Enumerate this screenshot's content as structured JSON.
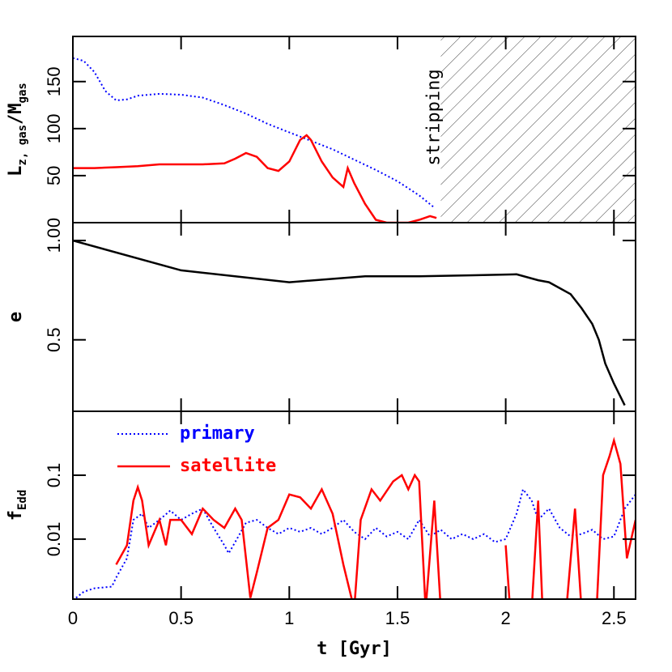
{
  "chart_data": [
    {
      "type": "line",
      "ylabel": [
        "L",
        "z, gas",
        "/M",
        "gas"
      ],
      "xlim": [
        0,
        2.6
      ],
      "ylim": [
        0,
        198
      ],
      "yticks": [
        0,
        50,
        100,
        150
      ],
      "annotation": "stripping",
      "hatch_xlim": [
        1.7,
        2.6
      ],
      "series": [
        {
          "name": "primary",
          "color": "#0000ff",
          "dash": "dotted",
          "x": [
            0,
            0.05,
            0.1,
            0.15,
            0.2,
            0.25,
            0.3,
            0.4,
            0.5,
            0.6,
            0.7,
            0.8,
            0.9,
            1.0,
            1.1,
            1.2,
            1.3,
            1.4,
            1.5,
            1.6,
            1.67
          ],
          "values": [
            175,
            172,
            160,
            140,
            130,
            131,
            135,
            137,
            136,
            133,
            125,
            116,
            105,
            96,
            87,
            78,
            67,
            56,
            44,
            29,
            16
          ]
        },
        {
          "name": "satellite",
          "color": "#ff0000",
          "dash": "solid",
          "x": [
            0,
            0.1,
            0.2,
            0.3,
            0.4,
            0.5,
            0.6,
            0.7,
            0.75,
            0.8,
            0.85,
            0.9,
            0.95,
            1.0,
            1.05,
            1.08,
            1.1,
            1.15,
            1.2,
            1.25,
            1.27,
            1.3,
            1.35,
            1.4,
            1.45,
            1.5,
            1.55,
            1.6,
            1.65,
            1.68
          ],
          "values": [
            58,
            58,
            59,
            60,
            62,
            62,
            62,
            63,
            68,
            74,
            70,
            58,
            55,
            65,
            88,
            93,
            88,
            65,
            48,
            38,
            58,
            42,
            20,
            3,
            0,
            0,
            0,
            3,
            7,
            5
          ]
        }
      ]
    },
    {
      "type": "line",
      "ylabel": [
        "e"
      ],
      "xlim": [
        0,
        2.6
      ],
      "ylim": [
        0.14,
        1.09
      ],
      "yticks": [
        0.5,
        {
          "value": 1,
          "label": "1.0"
        }
      ],
      "series": [
        {
          "color": "#000000",
          "dash": "solid",
          "x": [
            0,
            0.5,
            1.0,
            1.35,
            1.6,
            1.85,
            2.05,
            2.15,
            2.2,
            2.3,
            2.35,
            2.4,
            2.43,
            2.46,
            2.5,
            2.55
          ],
          "values": [
            1.0,
            0.85,
            0.79,
            0.82,
            0.82,
            0.825,
            0.83,
            0.8,
            0.79,
            0.73,
            0.66,
            0.58,
            0.5,
            0.38,
            0.28,
            0.17
          ]
        }
      ]
    },
    {
      "type": "line",
      "log": true,
      "ylabel": [
        "f",
        "Edd"
      ],
      "xlabel": "t [Gyr]",
      "xlim": [
        0,
        2.6
      ],
      "ylim": [
        0.00115,
        1
      ],
      "xticks": [
        0,
        0.5,
        1,
        1.5,
        2,
        2.5
      ],
      "yticks": [
        {
          "value": 0.01,
          "label": "0.01"
        },
        {
          "value": 0.1,
          "label": "0.1"
        }
      ],
      "series": [
        {
          "name": "primary",
          "color": "#0000ff",
          "dash": "dotted",
          "x": [
            0,
            0.05,
            0.1,
            0.18,
            0.2,
            0.25,
            0.28,
            0.32,
            0.35,
            0.4,
            0.45,
            0.5,
            0.55,
            0.6,
            0.65,
            0.7,
            0.72,
            0.75,
            0.8,
            0.85,
            0.9,
            0.95,
            1.0,
            1.05,
            1.1,
            1.15,
            1.2,
            1.25,
            1.3,
            1.35,
            1.4,
            1.45,
            1.5,
            1.55,
            1.6,
            1.65,
            1.7,
            1.75,
            1.8,
            1.85,
            1.9,
            1.95,
            2.0,
            2.05,
            2.08,
            2.12,
            2.15,
            2.2,
            2.25,
            2.3,
            2.35,
            2.4,
            2.45,
            2.5,
            2.55,
            2.6
          ],
          "values": [
            0.0011,
            0.0015,
            0.0017,
            0.0018,
            0.0025,
            0.005,
            0.02,
            0.025,
            0.015,
            0.02,
            0.028,
            0.02,
            0.025,
            0.03,
            0.015,
            0.008,
            0.006,
            0.009,
            0.018,
            0.02,
            0.015,
            0.012,
            0.015,
            0.013,
            0.015,
            0.012,
            0.015,
            0.02,
            0.013,
            0.01,
            0.015,
            0.011,
            0.013,
            0.01,
            0.02,
            0.011,
            0.014,
            0.01,
            0.012,
            0.01,
            0.012,
            0.009,
            0.01,
            0.025,
            0.06,
            0.04,
            0.02,
            0.03,
            0.015,
            0.011,
            0.012,
            0.014,
            0.01,
            0.011,
            0.03,
            0.05
          ]
        },
        {
          "name": "satellite",
          "color": "#ff0000",
          "dash": "solid",
          "x": [
            0.2,
            0.25,
            0.28,
            0.3,
            0.32,
            0.35,
            0.4,
            0.43,
            0.45,
            0.5,
            0.55,
            0.6,
            0.65,
            0.7,
            0.75,
            0.78,
            0.8,
            0.82,
            0.85,
            0.9,
            0.95,
            1.0,
            1.05,
            1.1,
            1.15,
            1.2,
            1.25,
            1.3,
            1.33,
            1.38,
            1.42,
            1.48,
            1.52,
            1.55,
            1.58,
            1.6,
            1.63,
            1.67,
            1.7,
            1.85,
            2.0,
            2.02,
            2.07,
            2.12,
            2.15,
            2.17,
            2.22,
            2.28,
            2.32,
            2.35,
            2.38,
            2.42,
            2.45,
            2.48,
            2.5,
            2.53,
            2.56,
            2.6
          ],
          "values": [
            0.004,
            0.008,
            0.04,
            0.065,
            0.04,
            0.008,
            0.02,
            0.008,
            0.02,
            0.02,
            0.012,
            0.03,
            0.02,
            0.015,
            0.03,
            0.02,
            0.005,
            0.0012,
            0.003,
            0.015,
            0.02,
            0.05,
            0.045,
            0.03,
            0.06,
            0.025,
            0.004,
            0.0008,
            0.02,
            0.06,
            0.04,
            0.08,
            0.1,
            0.06,
            0.1,
            0.08,
            0.0008,
            0.04,
            0.0008,
            null,
            0.008,
            0.0008,
            null,
            0.0008,
            0.04,
            0.0008,
            null,
            0.0008,
            0.03,
            0.0008,
            null,
            0.0008,
            0.1,
            0.2,
            0.35,
            0.15,
            0.005,
            0.02
          ]
        }
      ]
    }
  ]
}
